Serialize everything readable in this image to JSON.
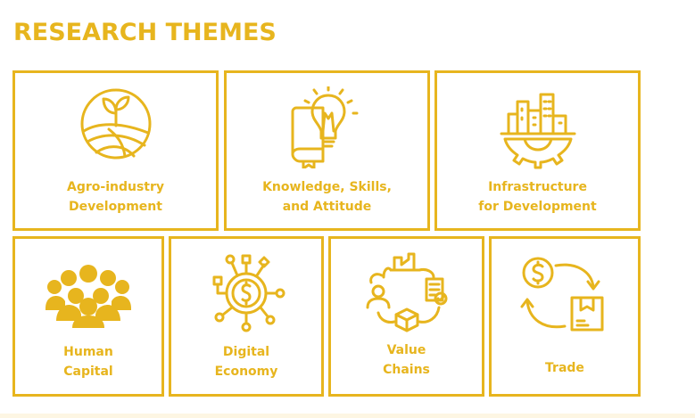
{
  "header": {
    "title": "RESEARCH THEMES"
  },
  "colors": {
    "accent": "#E7B51E",
    "background": "#FFFFFF"
  },
  "themes": [
    {
      "icon": "farm-field-sprout-icon",
      "line1": "Agro-industry",
      "line2": "Development"
    },
    {
      "icon": "book-lightbulb-icon",
      "line1": "Knowledge, Skills,",
      "line2": "and Attitude"
    },
    {
      "icon": "city-gear-icon",
      "line1": "Infrastructure",
      "line2": "for Development"
    },
    {
      "icon": "people-group-icon",
      "line1": "Human",
      "line2": "Capital"
    },
    {
      "icon": "digital-coin-network-icon",
      "line1": "Digital",
      "line2": "Economy"
    },
    {
      "icon": "value-chain-cycle-icon",
      "line1": "Value",
      "line2": "Chains"
    },
    {
      "icon": "trade-exchange-icon",
      "line1": "Trade"
    }
  ]
}
